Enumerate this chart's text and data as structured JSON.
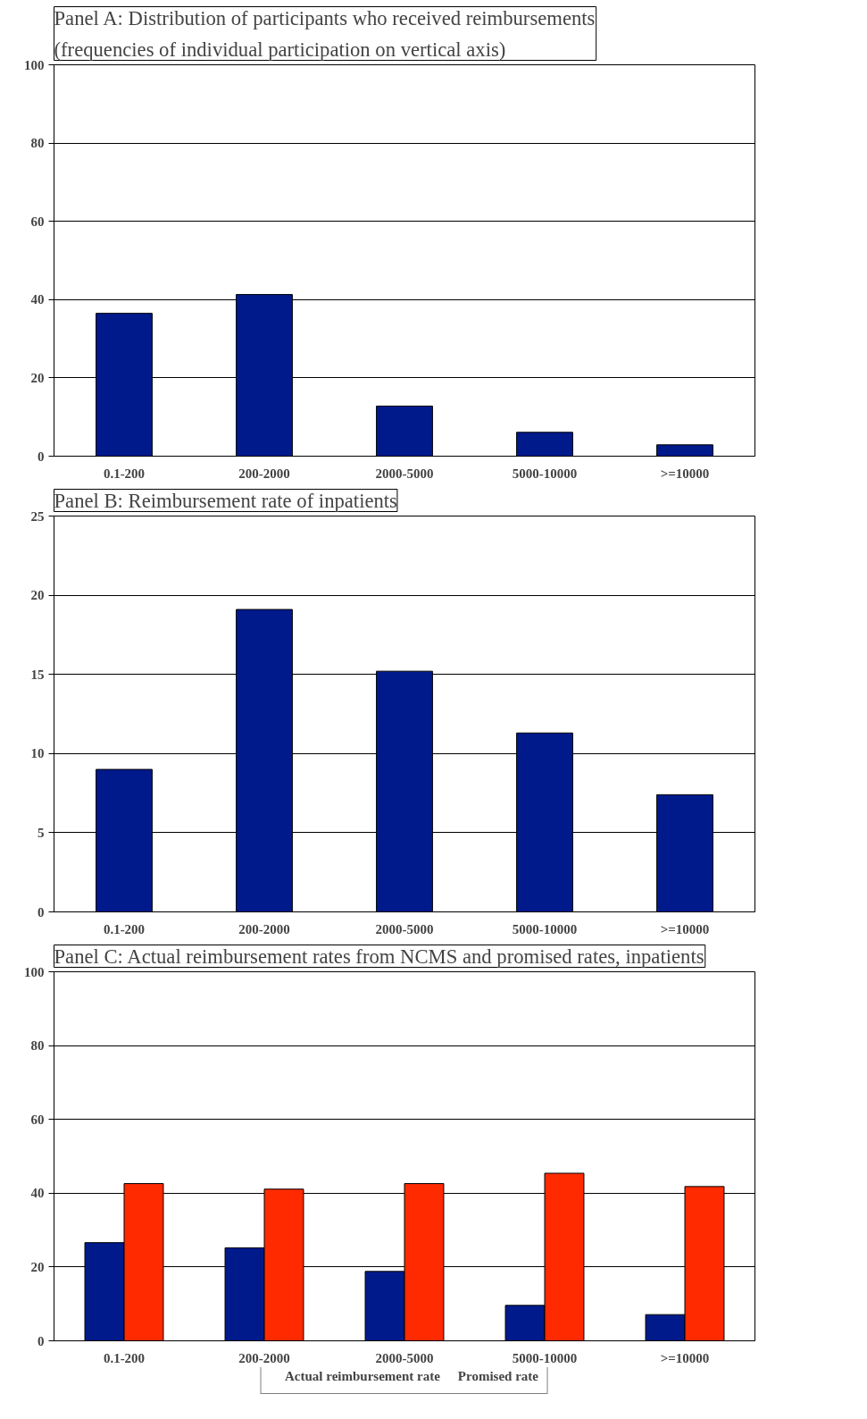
{
  "chart_data": [
    {
      "type": "bar",
      "title": "Panel A: Distribution of participants who received reimbursements\n(frequencies of individual participation on vertical axis)",
      "categories": [
        "0.1-200",
        "200-2000",
        "2000-5000",
        "5000-10000",
        ">=10000"
      ],
      "values": [
        36.5,
        41.3,
        12.8,
        6.1,
        2.9
      ],
      "color": "#001a8c",
      "ylim": [
        0,
        100
      ],
      "yticks": [
        0,
        20,
        40,
        60,
        80,
        100
      ],
      "grid": "y",
      "legend": false
    },
    {
      "type": "bar",
      "title": "Panel B: Reimbursement rate of inpatients",
      "categories": [
        "0.1-200",
        "200-2000",
        "2000-5000",
        "5000-10000",
        ">=10000"
      ],
      "values": [
        9.0,
        19.1,
        15.2,
        11.3,
        7.4
      ],
      "color": "#001a8c",
      "ylim": [
        0,
        25
      ],
      "yticks": [
        0,
        5,
        10,
        15,
        20,
        25
      ],
      "grid": "y",
      "legend": false
    },
    {
      "type": "bar",
      "title": "Panel C: Actual reimbursement rates from NCMS and promised rates, inpatients",
      "categories": [
        "0.1-200",
        "200-2000",
        "2000-5000",
        "5000-10000",
        ">=10000"
      ],
      "ylim": [
        0,
        100
      ],
      "yticks": [
        0,
        20,
        40,
        60,
        80,
        100
      ],
      "grid": "y",
      "legend": "bottom",
      "series": [
        {
          "name": "Actual reimbursement rate",
          "color": "#001a8c",
          "values": [
            26.6,
            25.2,
            18.8,
            9.6,
            7.1
          ]
        },
        {
          "name": "Promised rate",
          "color": "#ff2a00",
          "values": [
            42.6,
            41.1,
            42.6,
            45.4,
            41.8
          ]
        }
      ]
    }
  ]
}
